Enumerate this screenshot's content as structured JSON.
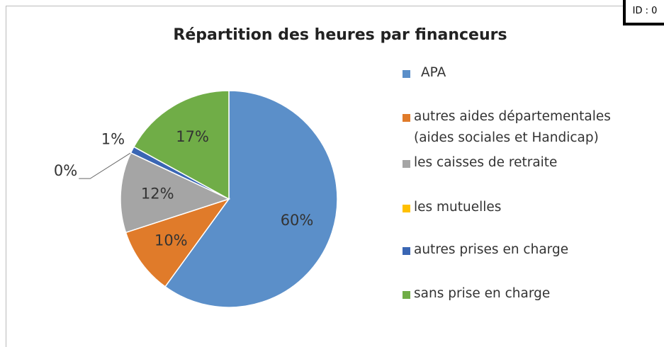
{
  "badge": "ID : 0",
  "chart_data": {
    "type": "pie",
    "title": "Répartition des heures par financeurs",
    "categories": [
      "APA",
      "autres aides départementales (aides sociales et Handicap)",
      "les caisses de retraite",
      "les mutuelles",
      "autres prises en charge",
      "sans prise en charge"
    ],
    "values": [
      60,
      10,
      12,
      0,
      1,
      17
    ],
    "value_labels": [
      "60%",
      "10%",
      "12%",
      "0%",
      "1%",
      "17%"
    ],
    "colors": [
      "#5b8fc9",
      "#e07b2a",
      "#a5a5a5",
      "#ffc000",
      "#3a66b4",
      "#70ad47"
    ],
    "legend": "right"
  }
}
